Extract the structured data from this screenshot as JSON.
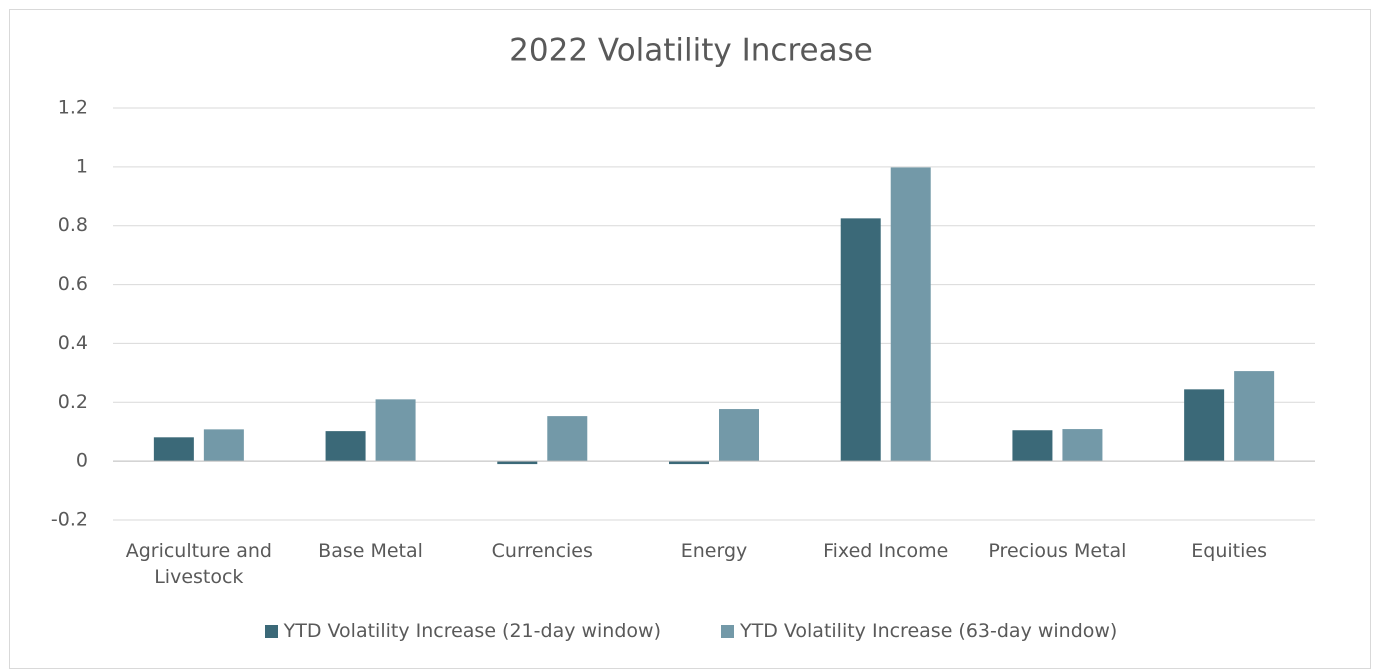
{
  "chart_data": {
    "type": "bar",
    "title": "2022 Volatility Increase",
    "categories": [
      "Agriculture and Livestock",
      "Base Metal",
      "Currencies",
      "Energy",
      "Fixed Income",
      "Precious Metal",
      "Equities"
    ],
    "series": [
      {
        "name": "YTD Volatility Increase (21-day window)",
        "color": "#3b6978",
        "values": [
          0.081,
          0.102,
          -0.01,
          -0.01,
          0.825,
          0.105,
          0.244
        ]
      },
      {
        "name": "YTD Volatility Increase (63-day window)",
        "color": "#7399a8",
        "values": [
          0.108,
          0.21,
          0.153,
          0.177,
          0.998,
          0.109,
          0.306
        ]
      }
    ],
    "ylim": [
      -0.2,
      1.2
    ],
    "yticks": [
      -0.2,
      0,
      0.2,
      0.4,
      0.6,
      0.8,
      1,
      1.2
    ],
    "grid": true,
    "legend": "bottom"
  }
}
